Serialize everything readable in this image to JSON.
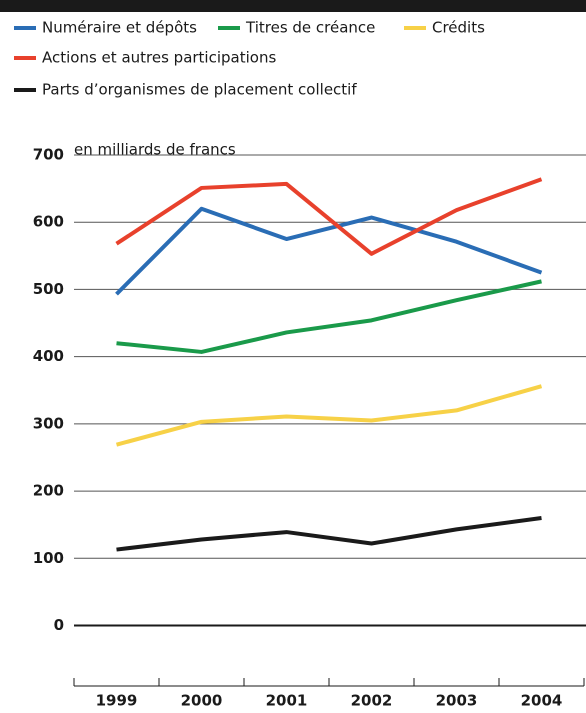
{
  "chart_data": {
    "type": "line",
    "y_axis_label": "en milliards de francs",
    "categories": [
      "1999",
      "2000",
      "2001",
      "2002",
      "2003",
      "2004"
    ],
    "series": [
      {
        "name": "Numéraire et dépôts",
        "color": "#2a6db5",
        "values": [
          493,
          620,
          575,
          607,
          571,
          525
        ]
      },
      {
        "name": "Titres de créance",
        "color": "#1a9a4a",
        "values": [
          420,
          407,
          436,
          454,
          484,
          512
        ]
      },
      {
        "name": "Crédits",
        "color": "#f7d147",
        "values": [
          269,
          303,
          311,
          305,
          320,
          356
        ]
      },
      {
        "name": "Actions et autres participations",
        "color": "#e8412c",
        "values": [
          568,
          651,
          657,
          553,
          618,
          664
        ]
      },
      {
        "name": "Parts d’organismes de placement collectif",
        "color": "#1a1a1a",
        "values": [
          113,
          128,
          139,
          122,
          143,
          160
        ]
      }
    ],
    "ylim": [
      -90,
      700
    ],
    "yticks": [
      0,
      100,
      200,
      300,
      400,
      500,
      600,
      700
    ],
    "grid": true
  }
}
